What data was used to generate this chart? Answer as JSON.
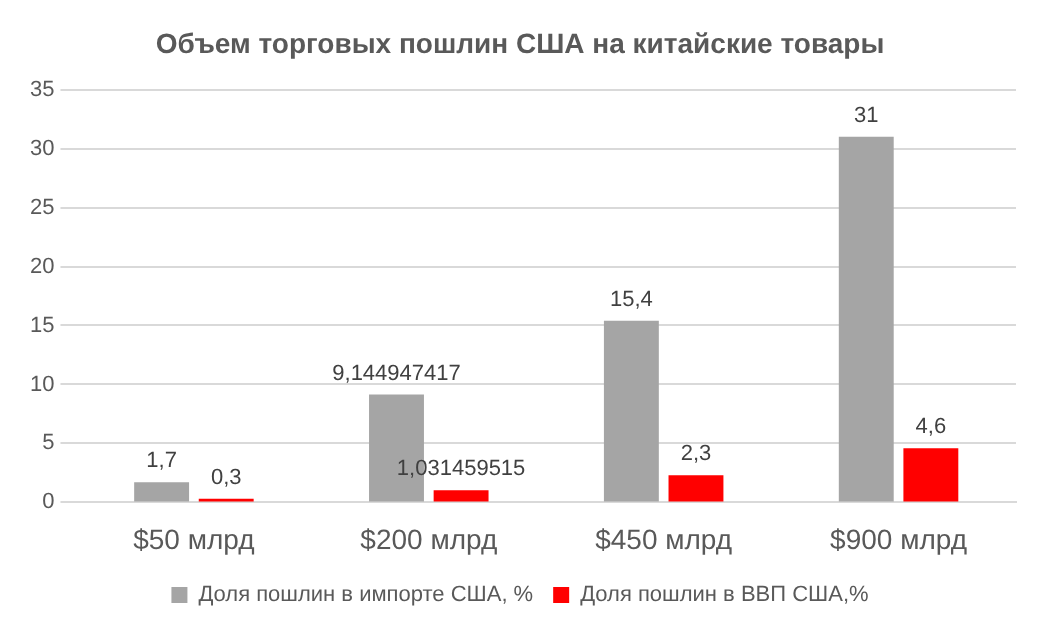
{
  "chart_data": {
    "type": "bar",
    "title": "Объем торговых пошлин США на китайские товары",
    "categories": [
      "$50 млрд",
      "$200 млрд",
      "$450 млрд",
      "$900 млрд"
    ],
    "series": [
      {
        "name": "Доля пошлин в импорте США, %",
        "color": "#a5a5a5",
        "values": [
          1.7,
          9.144947417,
          15.4,
          31
        ],
        "value_labels": [
          "1,7",
          "9,144947417",
          "15,4",
          "31"
        ]
      },
      {
        "name": "Доля пошлин в ВВП США,%",
        "color": "#ff0000",
        "values": [
          0.3,
          1.031459515,
          2.3,
          4.6
        ],
        "value_labels": [
          "0,3",
          "1,031459515",
          "2,3",
          "4,6"
        ]
      }
    ],
    "ylim": [
      0,
      35
    ],
    "yticks": [
      0,
      5,
      10,
      15,
      20,
      25,
      30,
      35
    ],
    "grid": "y",
    "legend": "bottom"
  }
}
